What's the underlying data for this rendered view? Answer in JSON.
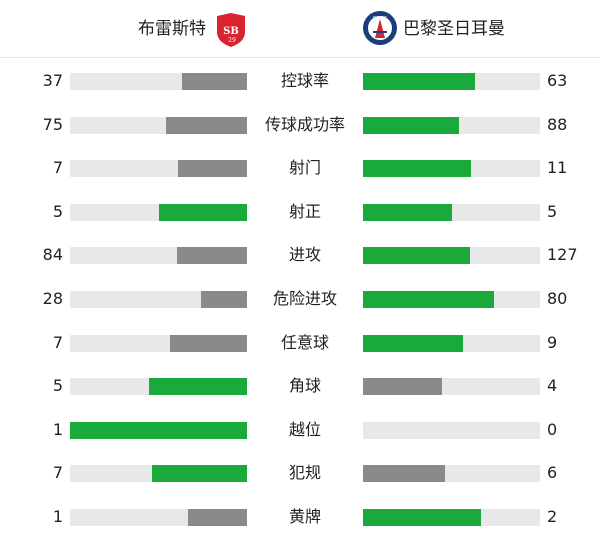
{
  "home": {
    "name": "布雷斯特",
    "logo_text": "SB29",
    "logo_color": "#d9232e"
  },
  "away": {
    "name": "巴黎圣日耳曼",
    "logo_text": "PARIS",
    "logo_color": "#1b3d7a"
  },
  "colors": {
    "leader": "#1aaa3c",
    "trailer": "#8a8a8a",
    "track": "#e8e8e8"
  },
  "stats": [
    {
      "label": "控球率",
      "home": 37,
      "away": 63
    },
    {
      "label": "传球成功率",
      "home": 75,
      "away": 88
    },
    {
      "label": "射门",
      "home": 7,
      "away": 11
    },
    {
      "label": "射正",
      "home": 5,
      "away": 5
    },
    {
      "label": "进攻",
      "home": 84,
      "away": 127
    },
    {
      "label": "危险进攻",
      "home": 28,
      "away": 80
    },
    {
      "label": "任意球",
      "home": 7,
      "away": 9
    },
    {
      "label": "角球",
      "home": 5,
      "away": 4
    },
    {
      "label": "越位",
      "home": 1,
      "away": 0
    },
    {
      "label": "犯规",
      "home": 7,
      "away": 6
    },
    {
      "label": "黄牌",
      "home": 1,
      "away": 2
    }
  ]
}
